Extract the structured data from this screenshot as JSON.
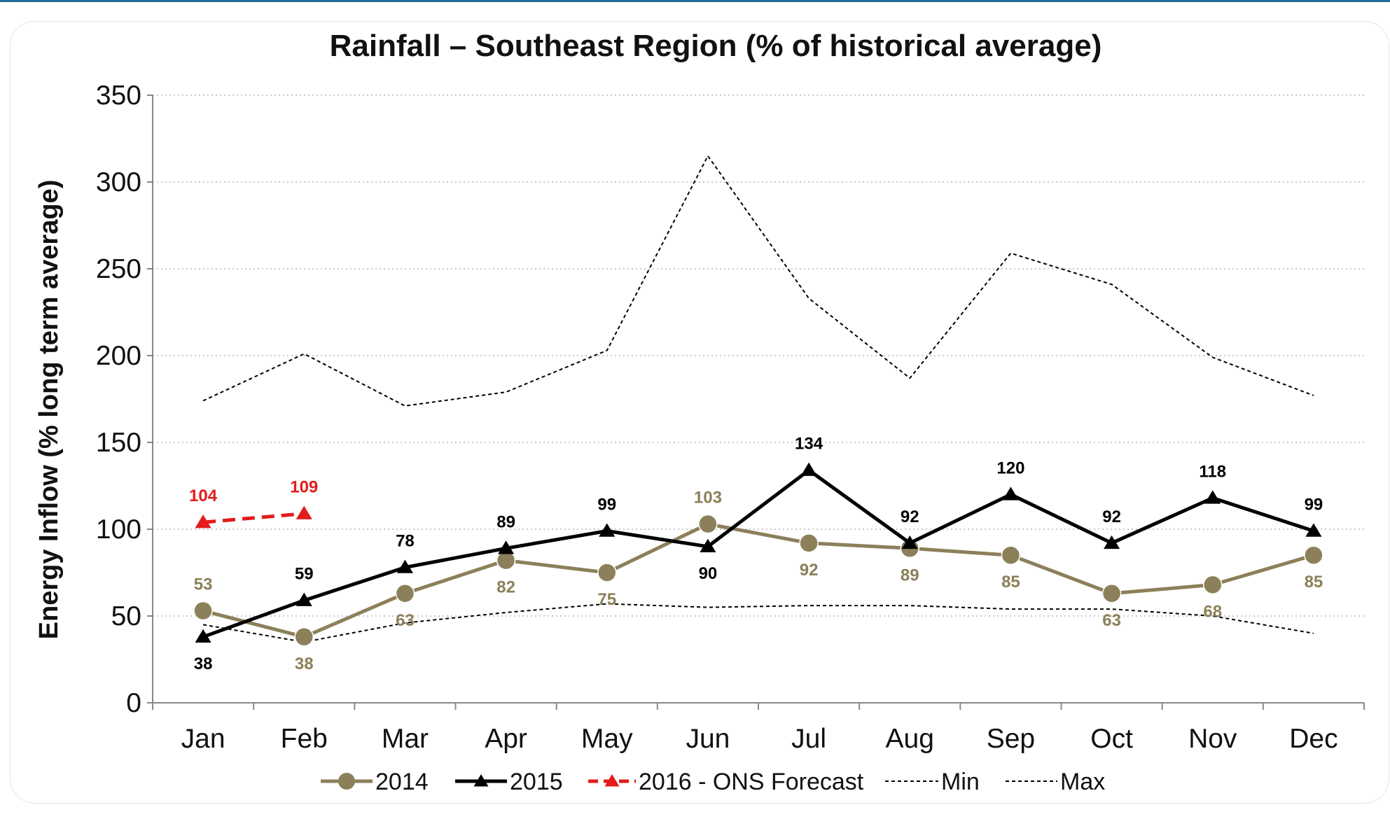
{
  "chart_data": {
    "type": "line",
    "title": "Rainfall – Southeast Region (% of historical average)",
    "ylabel": "Energy Inflow (% long term average)",
    "xlabel": "",
    "categories": [
      "Jan",
      "Feb",
      "Mar",
      "Apr",
      "May",
      "Jun",
      "Jul",
      "Aug",
      "Sep",
      "Oct",
      "Nov",
      "Dec"
    ],
    "ylim": [
      0,
      350
    ],
    "yticks": [
      0,
      50,
      100,
      150,
      200,
      250,
      300,
      350
    ],
    "grid": "horizontal dotted",
    "legend_position": "bottom",
    "series": [
      {
        "name": "2014",
        "color": "#8b8059",
        "style": "solid",
        "marker": "circle",
        "labels": true,
        "values": [
          53,
          38,
          63,
          82,
          75,
          103,
          92,
          89,
          85,
          63,
          68,
          85
        ]
      },
      {
        "name": "2015",
        "color": "#000000",
        "style": "solid",
        "marker": "triangle",
        "labels": true,
        "values": [
          38,
          59,
          78,
          89,
          99,
          90,
          134,
          92,
          120,
          92,
          118,
          99
        ]
      },
      {
        "name": "2016 - ONS Forecast",
        "color": "#e31b1b",
        "style": "dashed",
        "marker": "triangle",
        "labels": true,
        "values": [
          104,
          109,
          null,
          null,
          null,
          null,
          null,
          null,
          null,
          null,
          null,
          null
        ]
      },
      {
        "name": "Min",
        "color": "#000000",
        "style": "dotted",
        "marker": "none",
        "labels": false,
        "values": [
          45,
          35,
          46,
          52,
          57,
          55,
          56,
          56,
          54,
          54,
          50,
          40
        ]
      },
      {
        "name": "Max",
        "color": "#000000",
        "style": "dotted",
        "marker": "none",
        "labels": false,
        "values": [
          174,
          201,
          171,
          179,
          203,
          315,
          233,
          187,
          259,
          241,
          199,
          177
        ]
      }
    ]
  }
}
